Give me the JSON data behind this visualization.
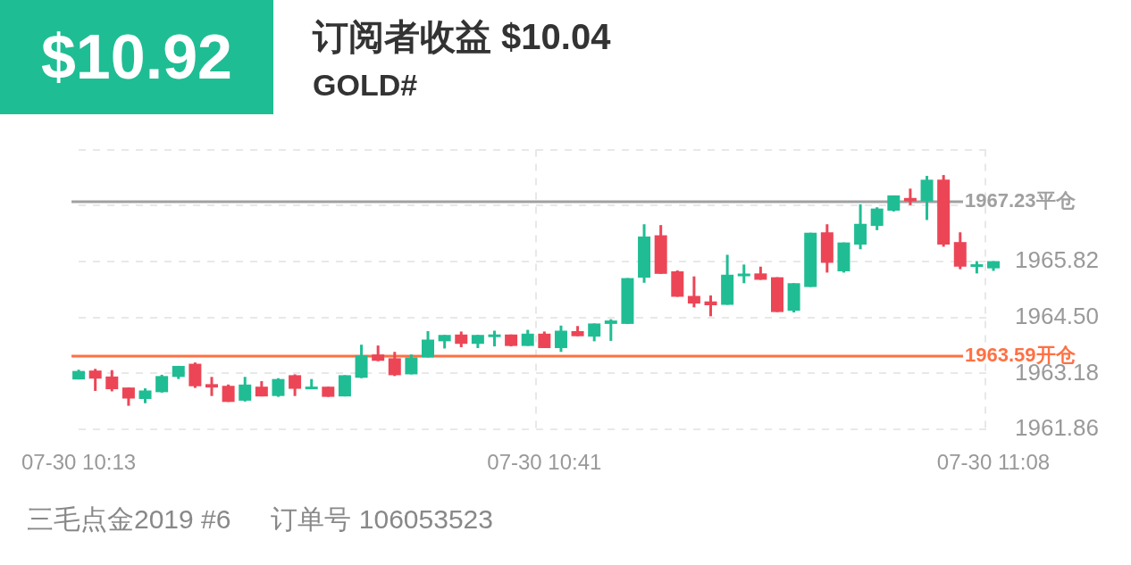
{
  "chart_data": {
    "type": "candlestick",
    "title": "订阅者收益 $10.04",
    "subtitle": "GOLD#",
    "annotations": [
      "$10.92",
      "三毛点金2019 #6",
      "订单号 106053523"
    ],
    "categories": [
      "07-30 10:13",
      null,
      null,
      null,
      null,
      null,
      null,
      null,
      null,
      null,
      null,
      null,
      null,
      null,
      null,
      null,
      null,
      null,
      null,
      null,
      null,
      null,
      null,
      null,
      null,
      null,
      null,
      null,
      "07-30 10:41",
      null,
      null,
      null,
      null,
      null,
      null,
      null,
      null,
      null,
      null,
      null,
      null,
      null,
      null,
      null,
      null,
      null,
      null,
      null,
      null,
      null,
      null,
      null,
      null,
      null,
      null,
      "07-30 11:08"
    ],
    "ohlc": [
      [
        1963.04,
        1963.27,
        1963.04,
        1963.24
      ],
      [
        1963.25,
        1963.29,
        1962.77,
        1963.06
      ],
      [
        1963.11,
        1963.26,
        1962.76,
        1962.81
      ],
      [
        1962.85,
        1962.85,
        1962.42,
        1962.59
      ],
      [
        1962.58,
        1962.83,
        1962.48,
        1962.78
      ],
      [
        1962.74,
        1963.15,
        1962.73,
        1963.12
      ],
      [
        1963.1,
        1963.36,
        1963.05,
        1963.36
      ],
      [
        1963.41,
        1963.44,
        1962.84,
        1962.88
      ],
      [
        1962.93,
        1963.1,
        1962.65,
        1962.85
      ],
      [
        1962.89,
        1962.92,
        1962.51,
        1962.51
      ],
      [
        1962.54,
        1963.1,
        1962.52,
        1962.92
      ],
      [
        1962.87,
        1963.0,
        1962.64,
        1962.64
      ],
      [
        1962.65,
        1963.07,
        1962.63,
        1963.05
      ],
      [
        1963.14,
        1963.16,
        1962.65,
        1962.82
      ],
      [
        1962.81,
        1963.05,
        1962.81,
        1962.87
      ],
      [
        1962.87,
        1962.87,
        1962.63,
        1962.63
      ],
      [
        1962.64,
        1963.14,
        1962.64,
        1963.14
      ],
      [
        1963.08,
        1963.86,
        1963.07,
        1963.61
      ],
      [
        1963.63,
        1963.84,
        1963.47,
        1963.48
      ],
      [
        1963.54,
        1963.69,
        1963.12,
        1963.14
      ],
      [
        1963.16,
        1963.63,
        1963.16,
        1963.56
      ],
      [
        1963.56,
        1964.18,
        1963.56,
        1963.98
      ],
      [
        1963.94,
        1964.09,
        1963.77,
        1964.09
      ],
      [
        1964.1,
        1964.17,
        1963.8,
        1963.88
      ],
      [
        1963.88,
        1964.09,
        1963.78,
        1964.09
      ],
      [
        1964.04,
        1964.19,
        1963.82,
        1964.1
      ],
      [
        1964.1,
        1964.1,
        1963.82,
        1963.83
      ],
      [
        1963.83,
        1964.21,
        1963.83,
        1964.12
      ],
      [
        1964.12,
        1964.17,
        1963.78,
        1963.78
      ],
      [
        1963.78,
        1964.31,
        1963.69,
        1964.19
      ],
      [
        1964.18,
        1964.3,
        1964.06,
        1964.06
      ],
      [
        1964.05,
        1964.36,
        1963.94,
        1964.36
      ],
      [
        1964.35,
        1964.46,
        1963.95,
        1964.43
      ],
      [
        1964.35,
        1965.43,
        1964.35,
        1965.43
      ],
      [
        1965.44,
        1966.7,
        1965.32,
        1966.41
      ],
      [
        1966.44,
        1966.68,
        1965.53,
        1965.53
      ],
      [
        1965.59,
        1965.61,
        1964.99,
        1964.99
      ],
      [
        1965.01,
        1965.47,
        1964.74,
        1964.83
      ],
      [
        1964.88,
        1965.02,
        1964.53,
        1964.79
      ],
      [
        1964.8,
        1965.98,
        1964.8,
        1965.51
      ],
      [
        1965.48,
        1965.75,
        1965.31,
        1965.53
      ],
      [
        1965.54,
        1965.7,
        1965.39,
        1965.39
      ],
      [
        1965.45,
        1965.45,
        1964.63,
        1964.63
      ],
      [
        1964.66,
        1965.31,
        1964.62,
        1965.31
      ],
      [
        1965.22,
        1966.5,
        1965.22,
        1966.5
      ],
      [
        1966.51,
        1966.7,
        1965.56,
        1965.79
      ],
      [
        1965.59,
        1966.27,
        1965.56,
        1966.27
      ],
      [
        1966.22,
        1967.17,
        1966.11,
        1966.71
      ],
      [
        1966.66,
        1967.1,
        1966.56,
        1967.07
      ],
      [
        1967.02,
        1967.38,
        1967.0,
        1967.38
      ],
      [
        1967.32,
        1967.54,
        1967.15,
        1967.24
      ],
      [
        1967.24,
        1967.84,
        1966.8,
        1967.75
      ],
      [
        1967.75,
        1967.86,
        1966.17,
        1966.22
      ],
      [
        1966.28,
        1966.51,
        1965.64,
        1965.7
      ],
      [
        1965.7,
        1965.83,
        1965.54,
        1965.75
      ],
      [
        1965.66,
        1965.83,
        1965.6,
        1965.83
      ]
    ],
    "colors": [
      "#20bd94",
      "#ec4656",
      "#ec4656",
      "#ec4656",
      "#20bd94",
      "#20bd94",
      "#20bd94",
      "#ec4656",
      "#ec4656",
      "#ec4656",
      "#20bd94",
      "#ec4656",
      "#20bd94",
      "#ec4656",
      "#20bd94",
      "#ec4656",
      "#20bd94",
      "#20bd94",
      "#ec4656",
      "#ec4656",
      "#20bd94",
      "#20bd94",
      "#20bd94",
      "#ec4656",
      "#20bd94",
      "#20bd94",
      "#ec4656",
      "#20bd94",
      "#ec4656",
      "#20bd94",
      "#ec4656",
      "#20bd94",
      "#20bd94",
      "#20bd94",
      "#20bd94",
      "#ec4656",
      "#ec4656",
      "#ec4656",
      "#ec4656",
      "#20bd94",
      "#20bd94",
      "#ec4656",
      "#ec4656",
      "#20bd94",
      "#20bd94",
      "#ec4656",
      "#20bd94",
      "#20bd94",
      "#20bd94",
      "#20bd94",
      "#ec4656",
      "#20bd94",
      "#ec4656",
      "#ec4656",
      "#20bd94",
      "#20bd94"
    ],
    "ylim": [
      1961.86,
      1968.46
    ],
    "yticks": [
      1961.86,
      1963.18,
      {
        "value": 1964.5,
        "label": "1964.50"
      },
      1965.82,
      {
        "value": 1967.14,
        "label": null
      },
      {
        "value": 1968.46,
        "label": null
      }
    ],
    "ref_lines": [
      {
        "axis": "y",
        "value": 1967.23,
        "label": "1967.23平仓",
        "color": "#a0a0a0"
      },
      {
        "axis": "y",
        "value": 1963.59,
        "label": "1963.59开仓",
        "color": "#ff7043"
      }
    ],
    "grid": true
  }
}
